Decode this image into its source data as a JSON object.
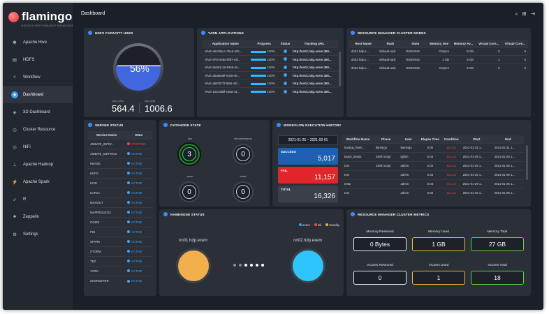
{
  "brand": {
    "name": "flamingo",
    "subtitle": "BIGDATA PERFORMANCE MANAGEMENT"
  },
  "sidebar": {
    "items": [
      {
        "label": "Apache Hive",
        "icon": "bee-icon",
        "glyph": "✽"
      },
      {
        "label": "HDFS",
        "icon": "storage-icon",
        "glyph": "▤"
      },
      {
        "label": "Workflow",
        "icon": "share-icon",
        "glyph": "<"
      },
      {
        "label": "Dashboard",
        "icon": "dashboard-icon",
        "glyph": "◉",
        "active": true
      },
      {
        "label": "3D Dashboard",
        "icon": "cube-icon",
        "glyph": "◈"
      },
      {
        "label": "Cluster Resource",
        "icon": "clock-icon",
        "glyph": "◷"
      },
      {
        "label": "NiFi",
        "icon": "nifi-icon",
        "glyph": "◎"
      },
      {
        "label": "Apache Hadoop",
        "icon": "sitemap-icon",
        "glyph": "⊥"
      },
      {
        "label": "Apache Spark",
        "icon": "spark-icon",
        "glyph": "⚡"
      },
      {
        "label": "R",
        "icon": "rocket-icon",
        "glyph": "➶"
      },
      {
        "label": "Zeppelin",
        "icon": "bell-icon",
        "glyph": "♣"
      },
      {
        "label": "Settings",
        "icon": "gear-icon",
        "glyph": "⚙"
      }
    ]
  },
  "header": {
    "title": "Dashboard",
    "icons": [
      "«",
      "⊞",
      "⇥"
    ]
  },
  "hdfs": {
    "title": "HDFS CAPACITY USED",
    "percent": "56%",
    "percent_value": 0.56,
    "used_label": "Used (GB)",
    "used_value": "564.4",
    "max_label": "Max (GB)",
    "max_value": "1006.6"
  },
  "yarn": {
    "title": "YARN APPLICATIONS",
    "columns": [
      "Application Name",
      "Progress",
      "Status",
      "Tracking URL"
    ],
    "rows": [
      {
        "name": "HIVE-e5c93ac1-75e6-425...",
        "progress": "100%",
        "url": "http://nn01.hdp.exem:380..."
      },
      {
        "name": "HIVE-8787446d-0fd7-44f...",
        "progress": "100%",
        "url": "http://nn01.hdp.exem:380..."
      },
      {
        "name": "HIVE-5eb61c26-93e8-4a...",
        "progress": "100%",
        "url": "http://nn01.hdp.exem:380..."
      },
      {
        "name": "HIVE-25a80a9f-ed16-48...",
        "progress": "100%",
        "url": "http://nn01.hdp.exem:380..."
      },
      {
        "name": "HIVE-a68757f3-f566-44f...",
        "progress": "100%",
        "url": "http://nn01.hdp.exem:380..."
      },
      {
        "name": "HIVE-103c4ddf-ea6a-43...",
        "progress": "100%",
        "url": "http://nn01.hdp.exem:380..."
      }
    ]
  },
  "rm_nodes": {
    "title": "RESOURCE MANAGER CLUSTER NODES",
    "columns": [
      "Host Name",
      "Rack",
      "State",
      "Memory Use",
      "Memory Av...",
      "Virtual Core...",
      "Virtual Core..."
    ],
    "rows": [
      [
        "dn01.hdp.e...",
        "/default-rack",
        "RUNNING",
        "0 Bytes",
        "9 GB",
        "0",
        "6"
      ],
      [
        "dn02.hdp.e...",
        "/default-rack",
        "RUNNING",
        "1 GB",
        "8 GB",
        "1",
        "5"
      ],
      [
        "dn03.hdp.e...",
        "/default-rack",
        "RUNNING",
        "0 Bytes",
        "9 GB",
        "0",
        "6"
      ]
    ]
  },
  "server_status": {
    "title": "SERVER STATUS",
    "columns": [
      "Service Name",
      "Stats"
    ],
    "rows": [
      {
        "name": "AMBARI_INFRA",
        "status": "STOPPED",
        "ok": false
      },
      {
        "name": "AMBARI_METRICS",
        "status": "ACTIVE",
        "ok": true
      },
      {
        "name": "HBASE",
        "status": "ACTIVE",
        "ok": true
      },
      {
        "name": "HDFS",
        "status": "ACTIVE",
        "ok": true
      },
      {
        "name": "HIVE",
        "status": "ACTIVE",
        "ok": true
      },
      {
        "name": "KAFKA",
        "status": "ACTIVE",
        "ok": true
      },
      {
        "name": "MAHOUT",
        "status": "ACTIVE",
        "ok": true
      },
      {
        "name": "MAPREDUCE2",
        "status": "ACTIVE",
        "ok": true
      },
      {
        "name": "OOZIE",
        "status": "ACTIVE",
        "ok": true
      },
      {
        "name": "PIG",
        "status": "ACTIVE",
        "ok": true
      },
      {
        "name": "SPARK",
        "status": "ACTIVE",
        "ok": true
      },
      {
        "name": "STORM",
        "status": "ACTIVE",
        "ok": true
      },
      {
        "name": "TEZ",
        "status": "ACTIVE",
        "ok": true
      },
      {
        "name": "YARN",
        "status": "ACTIVE",
        "ok": true
      },
      {
        "name": "ZOOKEEPER",
        "status": "ACTIVE",
        "ok": true
      }
    ]
  },
  "datanode": {
    "title": "DATANODE STATE",
    "live_label": "live",
    "live_value": "3",
    "decom_label": "decommission",
    "decom_value": "0",
    "warn_label": "warn",
    "warn_value": "0",
    "dead_label": "dead",
    "dead_value": "0"
  },
  "workflow": {
    "title": "WORKFLOW EXECUTION HISTORY",
    "date_range": "2021-01-25 ~ 2021-02-01",
    "success_label": "SUCCESS",
    "success_value": "5,017",
    "fail_label": "FAIL",
    "fail_value": "11,157",
    "total_label": "TOTAL",
    "total_value": "16,326",
    "columns": [
      "Workflow Name",
      "Phase",
      "User",
      "Elapse Time",
      "Condition",
      "Start",
      "End"
    ],
    "rows": [
      [
        "backup_flami...",
        "flamingo",
        "flamingo",
        "0.06",
        "KILLED",
        "2021-01-31 1...",
        "2021-01-31 1..."
      ],
      [
        "batch_test01",
        "Shell Script",
        "iglkim",
        "0.03",
        "KILLED",
        "2021-01-29 1...",
        "2021-01-29 1..."
      ],
      [
        "test",
        "Shell Script",
        "admin",
        "0.03",
        "KILLED",
        "2021-01-29 1...",
        "2021-01-29 1..."
      ],
      [
        "test",
        "",
        "admin",
        "0.03",
        "KILLED",
        "2021-01-29 1...",
        "2021-01-29 1..."
      ],
      [
        "test2",
        "",
        "admin",
        "0.03",
        "KILLED",
        "2021-01-29 1...",
        "2021-01-29 1..."
      ],
      [
        "test",
        "",
        "admin",
        "0.06",
        "KILLED",
        "2021-01-29 1...",
        "2021-01-29 1..."
      ]
    ]
  },
  "namenode": {
    "title": "NAMENODE STATUS",
    "legend": [
      "active",
      "fail",
      "standby"
    ],
    "colors": {
      "active": "#2aa7ff",
      "fail": "#ff4545",
      "standby": "#f2b04c"
    },
    "node1": "nn01.hdp.exem",
    "node2": "nn02.hdp.exem"
  },
  "rm_metrics": {
    "title": "RESOURCE MANAGER CLUSTER METRICS",
    "items": [
      {
        "label": "Memory Reserved",
        "value": "0 Bytes",
        "color": "#e8ecf2"
      },
      {
        "label": "Memory Used",
        "value": "1 GB",
        "color": "#f0b73a"
      },
      {
        "label": "Memory Total",
        "value": "27 GB",
        "color": "#5ed64a"
      },
      {
        "label": "VCores Reserved",
        "value": "0",
        "color": "#e8ecf2"
      },
      {
        "label": "VCores Used",
        "value": "1",
        "color": "#f0b73a"
      },
      {
        "label": "VCores Total",
        "value": "18",
        "color": "#5ed64a"
      }
    ]
  }
}
